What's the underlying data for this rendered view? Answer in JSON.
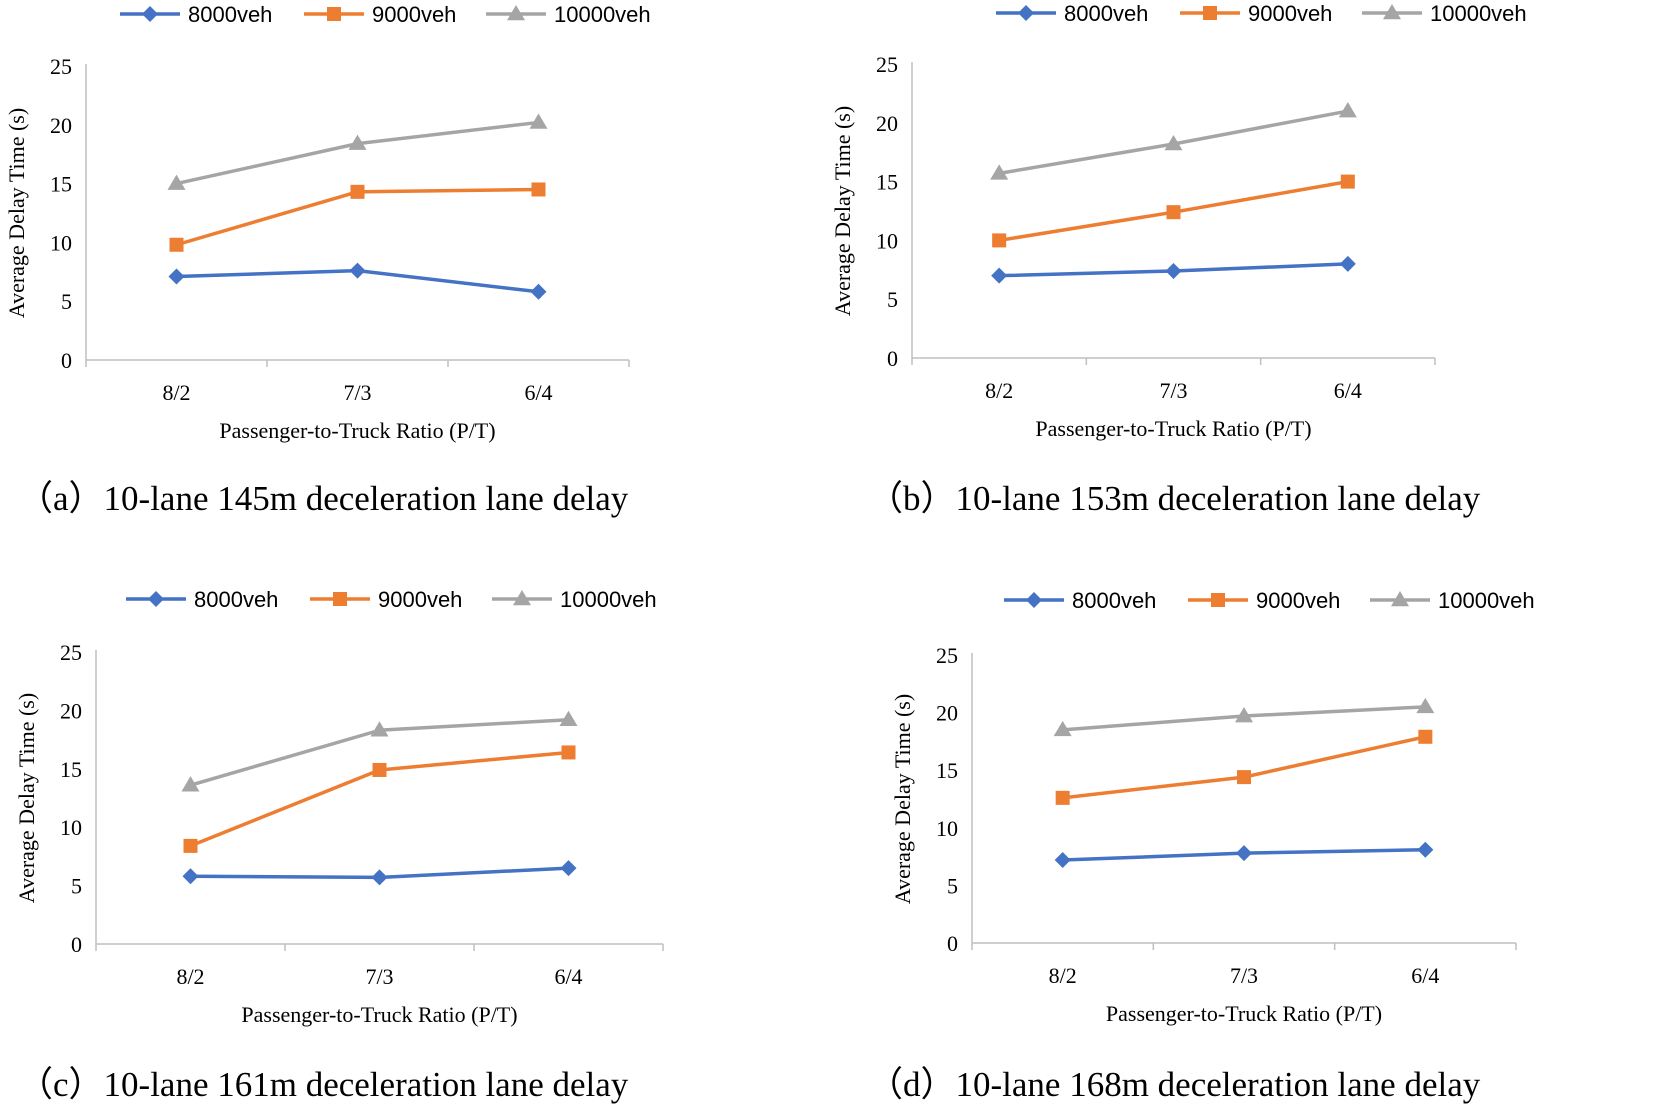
{
  "figure": {
    "colors": {
      "s0": "#4472C4",
      "s1": "#ED7D31",
      "s2": "#A5A5A5",
      "axis": "#BFBFBF"
    }
  },
  "chart_data": [
    {
      "type": "line",
      "caption": "（a）10-lane 145m deceleration lane delay",
      "categories": [
        "8/2",
        "7/3",
        "6/4"
      ],
      "xlabel": "Passenger-to-Truck Ratio (P/T)",
      "ylabel": "Average Delay Time (s)",
      "ylim": [
        0,
        25
      ],
      "yticks": [
        "0",
        "5",
        "10",
        "15",
        "20",
        "25"
      ],
      "legend_position": "top",
      "series": [
        {
          "name": "8000veh",
          "marker": "diamond",
          "values": [
            7.1,
            7.6,
            5.8
          ]
        },
        {
          "name": "9000veh",
          "marker": "square",
          "values": [
            9.8,
            14.3,
            14.5
          ]
        },
        {
          "name": "10000veh",
          "marker": "triangle",
          "values": [
            15.0,
            18.4,
            20.2
          ]
        }
      ]
    },
    {
      "type": "line",
      "caption": "（b）10-lane 153m deceleration lane delay",
      "categories": [
        "8/2",
        "7/3",
        "6/4"
      ],
      "xlabel": "Passenger-to-Truck Ratio (P/T)",
      "ylabel": "Average Delay Time (s)",
      "ylim": [
        0,
        25
      ],
      "yticks": [
        "0",
        "5",
        "10",
        "15",
        "20",
        "25"
      ],
      "legend_position": "top",
      "series": [
        {
          "name": "8000veh",
          "marker": "diamond",
          "values": [
            7.0,
            7.4,
            8.0
          ]
        },
        {
          "name": "9000veh",
          "marker": "square",
          "values": [
            10.0,
            12.4,
            15.0
          ]
        },
        {
          "name": "10000veh",
          "marker": "triangle",
          "values": [
            15.7,
            18.2,
            21.0
          ]
        }
      ]
    },
    {
      "type": "line",
      "caption": "（c）10-lane 161m deceleration lane delay",
      "categories": [
        "8/2",
        "7/3",
        "6/4"
      ],
      "xlabel": "Passenger-to-Truck Ratio (P/T)",
      "ylabel": "Average Delay Time (s)",
      "ylim": [
        0,
        25
      ],
      "yticks": [
        "0",
        "5",
        "10",
        "15",
        "20",
        "25"
      ],
      "legend_position": "top",
      "series": [
        {
          "name": "8000veh",
          "marker": "diamond",
          "values": [
            5.8,
            5.7,
            6.5
          ]
        },
        {
          "name": "9000veh",
          "marker": "square",
          "values": [
            8.4,
            14.9,
            16.4
          ]
        },
        {
          "name": "10000veh",
          "marker": "triangle",
          "values": [
            13.6,
            18.3,
            19.2
          ]
        }
      ]
    },
    {
      "type": "line",
      "caption": "（d）10-lane 168m deceleration lane delay",
      "categories": [
        "8/2",
        "7/3",
        "6/4"
      ],
      "xlabel": "Passenger-to-Truck Ratio (P/T)",
      "ylabel": "Average Delay Time (s)",
      "ylim": [
        0,
        25
      ],
      "yticks": [
        "0",
        "5",
        "10",
        "15",
        "20",
        "25"
      ],
      "legend_position": "top",
      "series": [
        {
          "name": "8000veh",
          "marker": "diamond",
          "values": [
            7.2,
            7.8,
            8.1
          ]
        },
        {
          "name": "9000veh",
          "marker": "square",
          "values": [
            12.6,
            14.4,
            17.9
          ]
        },
        {
          "name": "10000veh",
          "marker": "triangle",
          "values": [
            18.5,
            19.7,
            20.5
          ]
        }
      ]
    }
  ]
}
